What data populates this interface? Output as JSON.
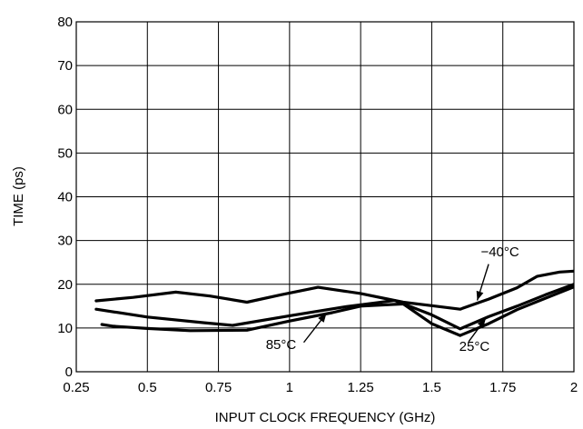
{
  "chart_data": {
    "type": "line",
    "title": "",
    "xlabel": "INPUT CLOCK FREQUENCY (GHz)",
    "ylabel": "TIME (ps)",
    "xlim": [
      0.25,
      2
    ],
    "ylim": [
      0,
      80
    ],
    "x_ticks": [
      0.25,
      0.5,
      0.75,
      1,
      1.25,
      1.5,
      1.75,
      2
    ],
    "x_tick_labels": [
      "0.25",
      "0.5",
      "0.75",
      "1",
      "1.25",
      "1.5",
      "1.75",
      "2"
    ],
    "y_ticks": [
      0,
      10,
      20,
      30,
      40,
      50,
      60,
      70,
      80
    ],
    "y_tick_labels": [
      "0",
      "10",
      "20",
      "30",
      "40",
      "50",
      "60",
      "70",
      "80"
    ],
    "grid": true,
    "series": [
      {
        "name": "−40°C",
        "x": [
          0.32,
          0.45,
          0.6,
          0.72,
          0.85,
          0.97,
          1.1,
          1.25,
          1.4,
          1.5,
          1.6,
          1.7,
          1.8,
          1.87,
          1.95,
          2.0
        ],
        "y": [
          16.2,
          17,
          18.2,
          17.3,
          15.9,
          17.6,
          19.3,
          17.9,
          15.9,
          15.1,
          14.3,
          16.6,
          19.2,
          21.8,
          22.8,
          23
        ]
      },
      {
        "name": "25°C",
        "x": [
          0.32,
          0.5,
          0.7,
          0.8,
          1.0,
          1.2,
          1.37,
          1.5,
          1.6,
          1.7,
          1.8,
          1.9,
          2.0
        ],
        "y": [
          14.3,
          12.5,
          11.2,
          10.6,
          12.8,
          14.9,
          16.3,
          13,
          9.8,
          12.6,
          15,
          17.6,
          20
        ]
      },
      {
        "name": "85°C",
        "x": [
          0.34,
          0.38,
          0.5,
          0.65,
          0.85,
          1.0,
          1.15,
          1.25,
          1.4,
          1.5,
          1.6,
          1.7,
          1.8,
          1.9,
          2.0
        ],
        "y": [
          10.8,
          10.4,
          9.9,
          9.4,
          9.5,
          11.6,
          13.5,
          15,
          15.5,
          11,
          8.3,
          11,
          14.2,
          16.8,
          19.4
        ]
      }
    ],
    "annotations": [
      {
        "text": "−40°C",
        "label_x": 1.74,
        "label_y": 26.4,
        "arrow_from": [
          1.7,
          24.6
        ],
        "arrow_to": [
          1.66,
          16.3
        ]
      },
      {
        "text": "85°C",
        "label_x": 0.97,
        "label_y": 5.2,
        "arrow_from": [
          1.05,
          6.7
        ],
        "arrow_to": [
          1.13,
          13.4
        ]
      },
      {
        "text": "25°C",
        "label_x": 1.65,
        "label_y": 4.8,
        "arrow_from": [
          1.63,
          6.9
        ],
        "arrow_to": [
          1.69,
          12.2
        ]
      }
    ]
  }
}
